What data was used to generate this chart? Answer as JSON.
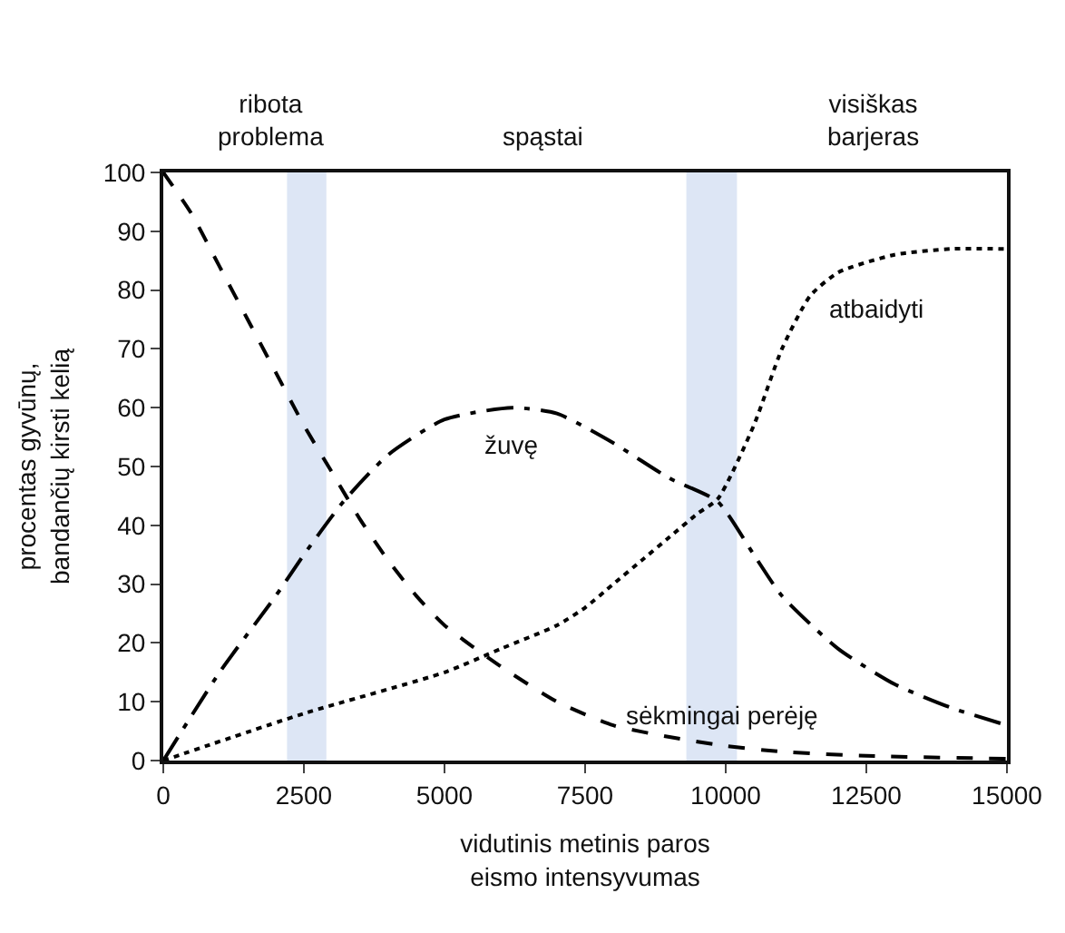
{
  "chart_data": {
    "type": "line",
    "xlabel": "vidutinis metinis paros\neismo intensyvumas",
    "ylabel": "procentas gyvūnų,\nbandančių kirsti kelią",
    "xlim": [
      0,
      15000
    ],
    "ylim": [
      0,
      100
    ],
    "xticks": [
      0,
      2500,
      5000,
      7500,
      10000,
      12500,
      15000
    ],
    "yticks": [
      0,
      10,
      20,
      30,
      40,
      50,
      60,
      70,
      80,
      90,
      100
    ],
    "grid": false,
    "legend": false,
    "marker": "none",
    "series": [
      {
        "name": "sėkmingai perėję",
        "color": "#000000",
        "line_style": "dashed",
        "x": [
          0,
          500,
          1000,
          1500,
          2000,
          2500,
          3000,
          3500,
          4000,
          4500,
          5000,
          6000,
          7000,
          8000,
          9000,
          10000,
          11000,
          12500,
          15000
        ],
        "values": [
          100,
          93,
          84,
          75,
          66,
          57,
          49,
          41,
          34,
          28,
          23,
          16,
          10,
          6,
          4,
          2.5,
          1.5,
          0.8,
          0.3
        ]
      },
      {
        "name": "žuvę",
        "color": "#000000",
        "line_style": "dashdot",
        "x": [
          0,
          1000,
          2000,
          2500,
          3200,
          4000,
          5000,
          6200,
          7000,
          8000,
          9000,
          9860,
          10500,
          11000,
          12000,
          13000,
          14000,
          15000
        ],
        "values": [
          0,
          15,
          28,
          35,
          44,
          52,
          58,
          60,
          59,
          54,
          48,
          44,
          35,
          28,
          19,
          13,
          9,
          6
        ]
      },
      {
        "name": "atbaidyti",
        "color": "#000000",
        "line_style": "dotted",
        "x": [
          0,
          2500,
          5000,
          6000,
          7000,
          7500,
          8000,
          8500,
          9000,
          9500,
          9860,
          10500,
          11000,
          11500,
          12000,
          13000,
          14000,
          15000
        ],
        "values": [
          0,
          8,
          15,
          19,
          23,
          26,
          30,
          34,
          38,
          42,
          44.5,
          57,
          70,
          79,
          83,
          86,
          87,
          87
        ]
      }
    ],
    "bands": [
      {
        "axis": "x",
        "from": 2200,
        "to": 2900,
        "color": "#dde6f5"
      },
      {
        "axis": "x",
        "from": 9300,
        "to": 10200,
        "color": "#dde6f5"
      }
    ],
    "annotations": [
      "ribota\nproblema",
      "spąstai",
      "visiškas\nbarjeras"
    ]
  }
}
